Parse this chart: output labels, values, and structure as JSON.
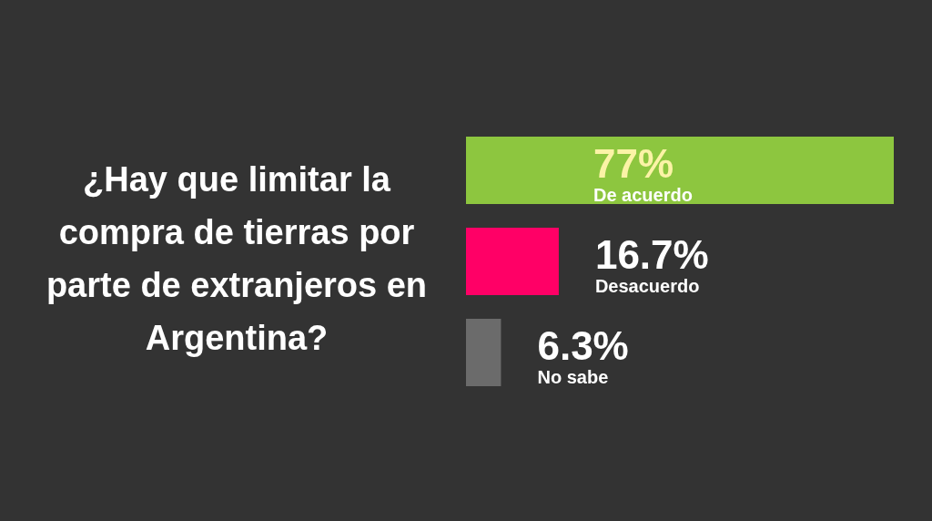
{
  "chart_data": {
    "type": "bar",
    "orientation": "horizontal",
    "title": "¿Hay que limitar la compra de tierras por parte de extranjeros en Argentina?",
    "categories": [
      "De acuerdo",
      "Desacuerdo",
      "No sabe"
    ],
    "values": [
      77,
      16.7,
      6.3
    ],
    "value_labels": [
      "77%",
      "16.7%",
      "6.3%"
    ],
    "colors": [
      "#8dc63f",
      "#ff0066",
      "#6b6b6b"
    ],
    "grid": false,
    "legend": false
  }
}
